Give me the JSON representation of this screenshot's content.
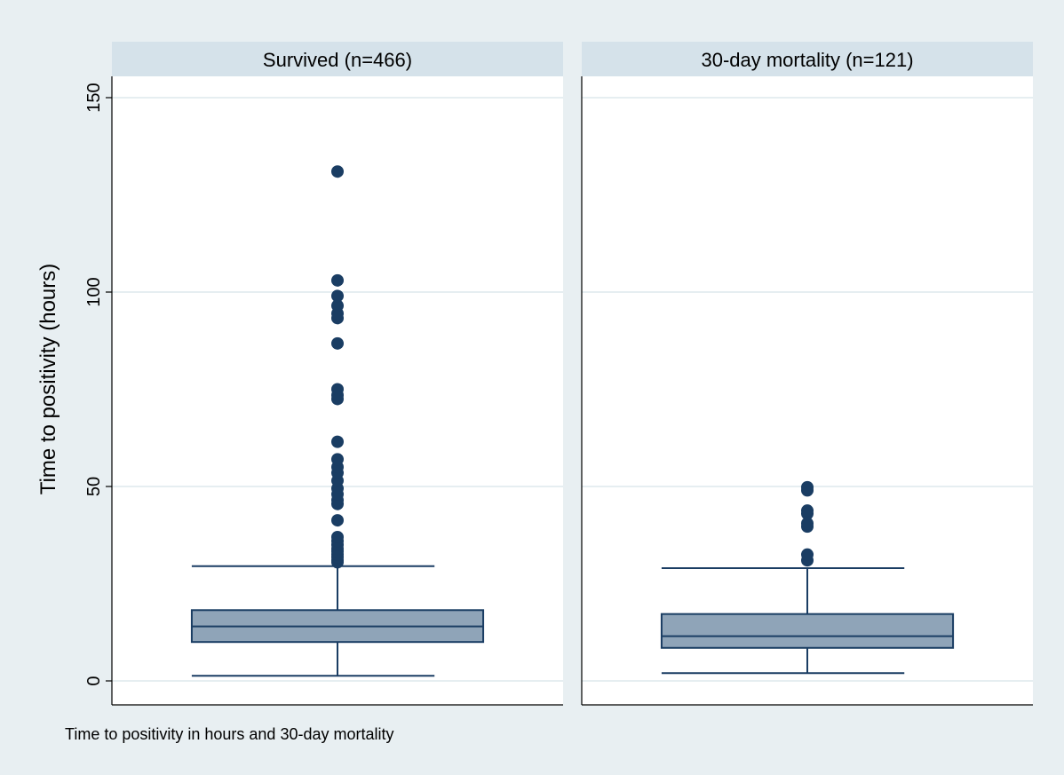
{
  "chart_data": {
    "type": "boxplot",
    "title": "",
    "xlabel": "",
    "ylabel": "Time to positivity (hours)",
    "note": "Time to positivity in hours and 30-day mortality",
    "ylim": [
      0,
      155
    ],
    "yticks": [
      0,
      50,
      100,
      150
    ],
    "grid": true,
    "colors": {
      "box_fill": "#8fa4b8",
      "box_edge": "#1a3d63",
      "outlier": "#1a3d63",
      "background": "#e8eff2",
      "strip": "#d5e2ea"
    },
    "panels": [
      {
        "label": "Survived (n=466)",
        "whisker_low": 1.3,
        "q1": 10,
        "median": 14,
        "q3": 18.2,
        "whisker_high": 29.5,
        "outliers": [
          30.5,
          31,
          31.8,
          32.5,
          33.3,
          34,
          35,
          36,
          37,
          41.3,
          45.5,
          46.5,
          48,
          49.5,
          51.5,
          53.5,
          55,
          57,
          61.5,
          72.5,
          73.5,
          75,
          86.8,
          93.3,
          94.5,
          96.5,
          99,
          103,
          131
        ]
      },
      {
        "label": "30-day mortality (n=121)",
        "whisker_low": 2,
        "q1": 8.5,
        "median": 11.5,
        "q3": 17.2,
        "whisker_high": 29,
        "outliers": [
          31,
          32.5,
          39.7,
          40.5,
          43,
          43.8,
          49,
          49.8
        ]
      }
    ]
  }
}
